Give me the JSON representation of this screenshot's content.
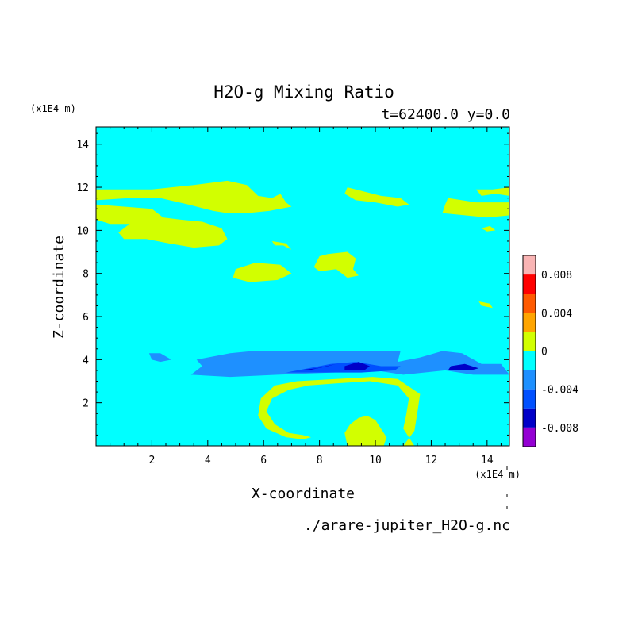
{
  "chart_data": {
    "type": "heatmap",
    "title": "H2O-g Mixing Ratio",
    "subtitle": "t=62400.0 y=0.0",
    "xlabel": "X-coordinate",
    "ylabel": "Z-coordinate",
    "x_unit": "(x1E4 m)",
    "y_unit": "(x1E4 m)",
    "xlim": [
      0,
      14.8
    ],
    "ylim": [
      0,
      14.8
    ],
    "x_ticks": [
      2,
      4,
      6,
      8,
      10,
      12,
      14
    ],
    "y_ticks": [
      2,
      4,
      6,
      8,
      10,
      12,
      14
    ],
    "source_file": "./arare-jupiter_H2O-g.nc",
    "colorbar": {
      "min": -0.01,
      "max": 0.01,
      "labels": [
        "0.008",
        "0.004",
        "0",
        "-0.004",
        "-0.008"
      ],
      "label_values": [
        0.008,
        0.004,
        0,
        -0.004,
        -0.008
      ],
      "levels": [
        {
          "from": 0.008,
          "to": 0.01,
          "color": "#f9b4b4"
        },
        {
          "from": 0.006,
          "to": 0.008,
          "color": "#ff0000"
        },
        {
          "from": 0.004,
          "to": 0.006,
          "color": "#ff5a00"
        },
        {
          "from": 0.002,
          "to": 0.004,
          "color": "#ffa500"
        },
        {
          "from": 0.0,
          "to": 0.002,
          "color": "#d2ff00"
        },
        {
          "from": -0.002,
          "to": 0.0,
          "color": "#00ffff"
        },
        {
          "from": -0.004,
          "to": -0.002,
          "color": "#1e90ff"
        },
        {
          "from": -0.006,
          "to": -0.004,
          "color": "#0050ff"
        },
        {
          "from": -0.008,
          "to": -0.006,
          "color": "#0000c8"
        },
        {
          "from": -0.01,
          "to": -0.008,
          "color": "#9400d3"
        }
      ]
    },
    "background_color": "#00ffff",
    "regions": [
      {
        "level": "0 to 0.002",
        "color": "#d2ff00",
        "points": [
          [
            0.0,
            11.9
          ],
          [
            2,
            11.9
          ],
          [
            3.5,
            12.1
          ],
          [
            4.7,
            12.3
          ],
          [
            5.4,
            12.1
          ],
          [
            5.8,
            11.6
          ],
          [
            6.3,
            11.5
          ],
          [
            6.6,
            11.7
          ],
          [
            6.8,
            11.3
          ],
          [
            7.0,
            11.1
          ],
          [
            6.2,
            10.9
          ],
          [
            5.4,
            10.8
          ],
          [
            4.7,
            10.8
          ],
          [
            4.2,
            10.9
          ],
          [
            3.3,
            11.2
          ],
          [
            2.3,
            11.5
          ],
          [
            1.2,
            11.5
          ],
          [
            0.0,
            11.4
          ]
        ]
      },
      {
        "level": "0 to 0.002",
        "color": "#d2ff00",
        "points": [
          [
            0.0,
            11.2
          ],
          [
            1.0,
            11.1
          ],
          [
            2.0,
            11.0
          ],
          [
            2.4,
            10.6
          ],
          [
            3.0,
            10.5
          ],
          [
            3.8,
            10.4
          ],
          [
            4.5,
            10.1
          ],
          [
            4.7,
            9.6
          ],
          [
            4.4,
            9.3
          ],
          [
            3.5,
            9.2
          ],
          [
            2.6,
            9.4
          ],
          [
            1.8,
            9.6
          ],
          [
            1.0,
            9.6
          ],
          [
            0.8,
            9.9
          ],
          [
            1.2,
            10.3
          ],
          [
            0.5,
            10.3
          ],
          [
            0.0,
            10.5
          ]
        ]
      },
      {
        "level": "0 to 0.002",
        "color": "#d2ff00",
        "points": [
          [
            9.0,
            12.0
          ],
          [
            9.6,
            11.8
          ],
          [
            10.2,
            11.6
          ],
          [
            10.9,
            11.5
          ],
          [
            11.2,
            11.2
          ],
          [
            10.8,
            11.1
          ],
          [
            10.0,
            11.3
          ],
          [
            9.3,
            11.4
          ],
          [
            8.9,
            11.7
          ]
        ]
      },
      {
        "level": "0 to 0.002",
        "color": "#d2ff00",
        "points": [
          [
            13.6,
            11.9
          ],
          [
            14.2,
            11.9
          ],
          [
            14.8,
            12.0
          ],
          [
            14.8,
            11.6
          ],
          [
            14.3,
            11.7
          ],
          [
            13.8,
            11.6
          ]
        ]
      },
      {
        "level": "0 to 0.002",
        "color": "#d2ff00",
        "points": [
          [
            12.6,
            11.5
          ],
          [
            13.6,
            11.3
          ],
          [
            14.8,
            11.3
          ],
          [
            14.8,
            10.7
          ],
          [
            14.0,
            10.6
          ],
          [
            13.2,
            10.7
          ],
          [
            12.4,
            10.8
          ],
          [
            12.5,
            11.2
          ]
        ]
      },
      {
        "level": "0 to 0.002",
        "color": "#d2ff00",
        "points": [
          [
            8.3,
            8.9
          ],
          [
            9.0,
            9.0
          ],
          [
            9.3,
            8.7
          ],
          [
            9.2,
            8.2
          ],
          [
            9.4,
            7.9
          ],
          [
            9.0,
            7.8
          ],
          [
            8.6,
            8.2
          ],
          [
            8.0,
            8.1
          ],
          [
            7.8,
            8.3
          ],
          [
            8.0,
            8.8
          ]
        ]
      },
      {
        "level": "0 to 0.002",
        "color": "#d2ff00",
        "points": [
          [
            5.0,
            8.2
          ],
          [
            5.7,
            8.5
          ],
          [
            6.6,
            8.4
          ],
          [
            7.0,
            8.0
          ],
          [
            6.5,
            7.7
          ],
          [
            5.5,
            7.6
          ],
          [
            4.9,
            7.8
          ]
        ]
      },
      {
        "level": "0 to 0.002",
        "color": "#d2ff00",
        "points": [
          [
            6.3,
            9.5
          ],
          [
            6.8,
            9.4
          ],
          [
            7.0,
            9.1
          ],
          [
            6.7,
            9.3
          ],
          [
            6.4,
            9.3
          ]
        ]
      },
      {
        "level": "0 to 0.002",
        "color": "#d2ff00",
        "points": [
          [
            13.8,
            10.1
          ],
          [
            14.1,
            10.2
          ],
          [
            14.3,
            10.0
          ],
          [
            14.0,
            9.95
          ]
        ]
      },
      {
        "level": "0 to 0.002",
        "color": "#d2ff00",
        "points": [
          [
            13.7,
            6.7
          ],
          [
            14.1,
            6.6
          ],
          [
            14.2,
            6.4
          ],
          [
            13.8,
            6.5
          ]
        ]
      },
      {
        "level": "-0.004 to -0.002",
        "color": "#1e90ff",
        "points": [
          [
            3.4,
            3.3
          ],
          [
            4.8,
            3.2
          ],
          [
            6.5,
            3.3
          ],
          [
            8.5,
            3.4
          ],
          [
            10.0,
            3.5
          ],
          [
            11.0,
            3.3
          ],
          [
            12.5,
            3.5
          ],
          [
            13.5,
            3.3
          ],
          [
            14.8,
            3.3
          ],
          [
            14.5,
            3.8
          ],
          [
            13.8,
            3.8
          ],
          [
            13.1,
            4.3
          ],
          [
            12.4,
            4.4
          ],
          [
            11.6,
            4.1
          ],
          [
            10.8,
            3.9
          ],
          [
            10.9,
            4.4
          ],
          [
            8.0,
            4.4
          ],
          [
            5.6,
            4.4
          ],
          [
            4.8,
            4.3
          ],
          [
            3.6,
            4.0
          ],
          [
            3.8,
            3.7
          ]
        ]
      },
      {
        "level": "-0.004 to -0.002",
        "color": "#1e90ff",
        "points": [
          [
            1.9,
            4.3
          ],
          [
            2.3,
            4.3
          ],
          [
            2.7,
            4.0
          ],
          [
            2.3,
            3.9
          ],
          [
            2.0,
            4.0
          ]
        ]
      },
      {
        "level": "-0.006 to -0.004",
        "color": "#0050ff",
        "points": [
          [
            6.8,
            3.4
          ],
          [
            7.6,
            3.6
          ],
          [
            8.4,
            3.8
          ],
          [
            9.3,
            3.9
          ],
          [
            10.2,
            3.7
          ],
          [
            10.9,
            3.7
          ],
          [
            10.7,
            3.5
          ],
          [
            9.5,
            3.4
          ],
          [
            8.0,
            3.4
          ]
        ]
      },
      {
        "level": "-0.008 to -0.006",
        "color": "#0000c8",
        "points": [
          [
            7.2,
            3.5
          ],
          [
            7.9,
            3.6
          ],
          [
            8.6,
            3.8
          ],
          [
            8.3,
            3.7
          ],
          [
            7.6,
            3.5
          ]
        ]
      },
      {
        "level": "-0.008 to -0.006",
        "color": "#0000c8",
        "points": [
          [
            8.9,
            3.5
          ],
          [
            9.6,
            3.5
          ],
          [
            9.8,
            3.7
          ],
          [
            9.4,
            3.9
          ],
          [
            8.9,
            3.7
          ]
        ]
      },
      {
        "level": "-0.008 to -0.006",
        "color": "#0000c8",
        "points": [
          [
            12.6,
            3.5
          ],
          [
            13.4,
            3.5
          ],
          [
            13.7,
            3.6
          ],
          [
            13.2,
            3.8
          ],
          [
            12.7,
            3.7
          ]
        ]
      },
      {
        "level": "0 to 0.002",
        "color": "#d2ff00",
        "points": [
          [
            11.0,
            0.0
          ],
          [
            11.4,
            0.0
          ],
          [
            11.0,
            0.8
          ],
          [
            11.1,
            1.4
          ],
          [
            11.2,
            2.2
          ],
          [
            10.8,
            2.8
          ],
          [
            9.8,
            3.0
          ],
          [
            8.6,
            2.9
          ],
          [
            7.6,
            2.8
          ],
          [
            6.9,
            2.6
          ],
          [
            6.3,
            2.2
          ],
          [
            6.1,
            1.6
          ],
          [
            6.4,
            1.0
          ],
          [
            6.9,
            0.6
          ],
          [
            7.4,
            0.5
          ],
          [
            7.7,
            0.4
          ],
          [
            7.4,
            0.3
          ],
          [
            6.8,
            0.4
          ],
          [
            6.1,
            0.8
          ],
          [
            5.8,
            1.4
          ],
          [
            5.9,
            2.2
          ],
          [
            6.4,
            2.8
          ],
          [
            7.2,
            3.0
          ],
          [
            8.6,
            3.1
          ],
          [
            9.9,
            3.2
          ],
          [
            10.8,
            3.1
          ],
          [
            11.6,
            2.4
          ],
          [
            11.5,
            1.5
          ],
          [
            11.4,
            0.7
          ]
        ]
      },
      {
        "level": "0 to 0.002",
        "color": "#d2ff00",
        "points": [
          [
            9.0,
            0.0
          ],
          [
            10.3,
            0.0
          ],
          [
            10.4,
            0.4
          ],
          [
            10.2,
            0.8
          ],
          [
            10.0,
            1.2
          ],
          [
            9.7,
            1.4
          ],
          [
            9.4,
            1.3
          ],
          [
            9.1,
            1.0
          ],
          [
            8.9,
            0.6
          ]
        ]
      }
    ]
  }
}
